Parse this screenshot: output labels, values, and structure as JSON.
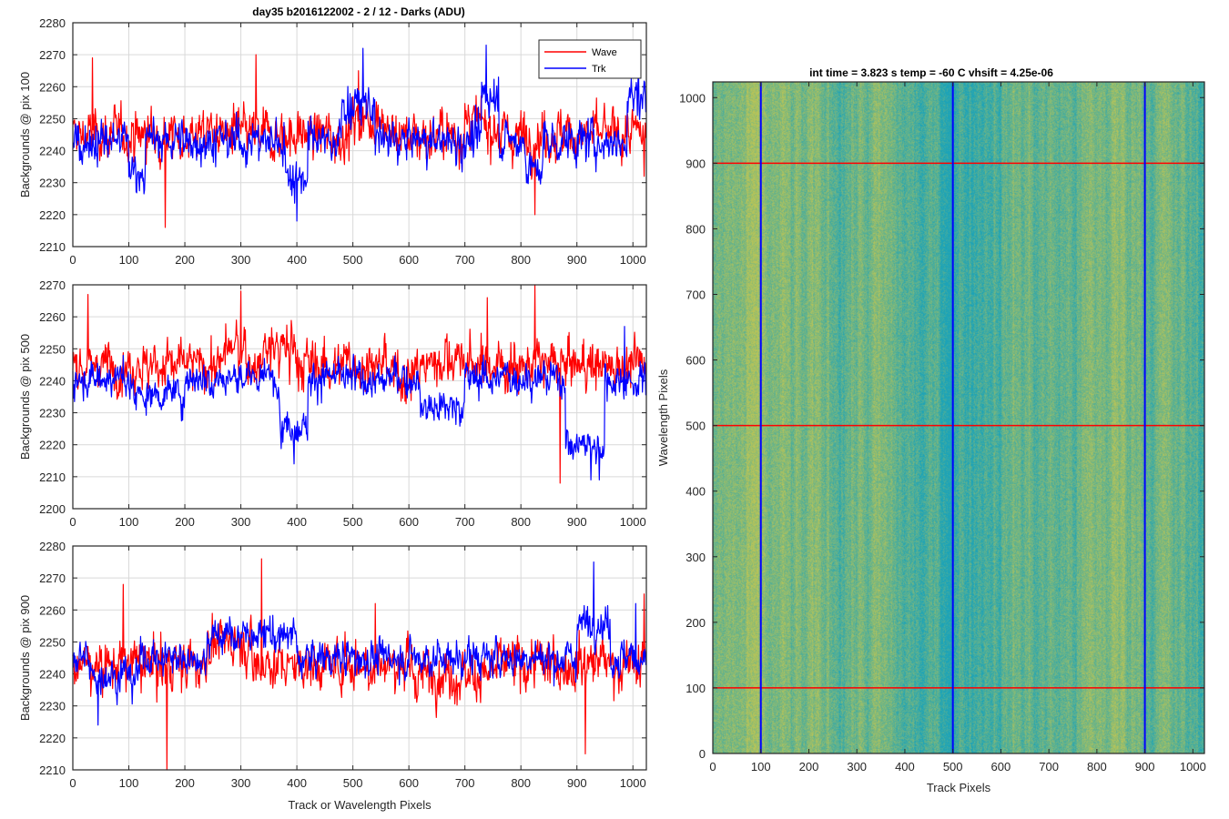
{
  "figure": {
    "left_title": "day35 b2016122002 - 2 / 12 - Darks (ADU)",
    "right_title": "int time = 3.823 s   temp = -60 C   vhsift = 4.25e-06"
  },
  "colors": {
    "wave": "#ff0000",
    "trk": "#0000ff",
    "grid": "#d9d9d9",
    "axis": "#262626",
    "image_low": "#1ca3b8",
    "image_high": "#b8c458"
  },
  "chart_data": [
    {
      "type": "line",
      "title": "day35 b2016122002 - 2 / 12 - Darks (ADU)",
      "xlabel": "",
      "ylabel": "Backgrounds @ pix 100",
      "xlim": [
        0,
        1024
      ],
      "ylim": [
        2210,
        2280
      ],
      "xticks": [
        "0",
        "100",
        "200",
        "300",
        "400",
        "500",
        "600",
        "700",
        "800",
        "900",
        "1000"
      ],
      "yticks": [
        "2210",
        "2220",
        "2230",
        "2240",
        "2250",
        "2260",
        "2270",
        "2280"
      ],
      "grid": true,
      "legend": {
        "placement": "top-right",
        "entries": [
          "Wave",
          "Trk"
        ]
      },
      "series": [
        {
          "name": "Wave",
          "color": "#ff0000",
          "mean": 2245,
          "noise": 7,
          "features": [
            [
              240,
              255,
              2248
            ],
            [
              500,
              560,
              2250
            ],
            [
              540,
              550,
              2252
            ],
            [
              700,
              760,
              2248
            ]
          ],
          "extremes": [
            [
              35,
              2269
            ],
            [
              165,
              2216
            ],
            [
              327,
              2270
            ],
            [
              510,
              2265
            ],
            [
              825,
              2220
            ],
            [
              1020,
              2232
            ]
          ]
        },
        {
          "name": "Trk",
          "color": "#0000ff",
          "mean": 2243,
          "noise": 6,
          "features": [
            [
              100,
              130,
              2234
            ],
            [
              380,
              420,
              2232
            ],
            [
              480,
              540,
              2254
            ],
            [
              730,
              760,
              2258
            ],
            [
              810,
              840,
              2234
            ],
            [
              990,
              1024,
              2257
            ]
          ],
          "extremes": [
            [
              400,
              2218
            ],
            [
              518,
              2272
            ],
            [
              738,
              2273
            ],
            [
              760,
              2263
            ],
            [
              1010,
              2266
            ]
          ]
        }
      ]
    },
    {
      "type": "line",
      "title": "",
      "xlabel": "",
      "ylabel": "Backgrounds @ pix 500",
      "xlim": [
        0,
        1024
      ],
      "ylim": [
        2200,
        2270
      ],
      "xticks": [
        "0",
        "100",
        "200",
        "300",
        "400",
        "500",
        "600",
        "700",
        "800",
        "900",
        "1000"
      ],
      "yticks": [
        "2200",
        "2210",
        "2220",
        "2230",
        "2240",
        "2250",
        "2260",
        "2270"
      ],
      "grid": true,
      "series": [
        {
          "name": "Wave",
          "color": "#ff0000",
          "mean": 2245,
          "noise": 7,
          "features": [
            [
              270,
              310,
              2250
            ],
            [
              340,
              400,
              2250
            ],
            [
              560,
              620,
              2242
            ],
            [
              640,
              700,
              2247
            ]
          ],
          "extremes": [
            [
              27,
              2267
            ],
            [
              168,
              2250
            ],
            [
              300,
              2268
            ],
            [
              740,
              2266
            ],
            [
              825,
              2270
            ],
            [
              870,
              2208
            ]
          ]
        },
        {
          "name": "Trk",
          "color": "#0000ff",
          "mean": 2241,
          "noise": 5,
          "features": [
            [
              100,
              200,
              2236
            ],
            [
              370,
              420,
              2226
            ],
            [
              520,
              560,
              2240
            ],
            [
              620,
              700,
              2232
            ],
            [
              880,
              950,
              2220
            ],
            [
              950,
              1024,
              2240
            ]
          ],
          "extremes": [
            [
              395,
              2214
            ],
            [
              925,
              2209
            ],
            [
              940,
              2209
            ],
            [
              985,
              2257
            ]
          ]
        }
      ]
    },
    {
      "type": "line",
      "title": "",
      "xlabel": "Track or Wavelength Pixels",
      "ylabel": "Backgrounds @ pix 900",
      "xlim": [
        0,
        1024
      ],
      "ylim": [
        2210,
        2280
      ],
      "xticks": [
        "0",
        "100",
        "200",
        "300",
        "400",
        "500",
        "600",
        "700",
        "800",
        "900",
        "1000"
      ],
      "yticks": [
        "2210",
        "2220",
        "2230",
        "2240",
        "2250",
        "2260",
        "2270",
        "2280"
      ],
      "grid": true,
      "series": [
        {
          "name": "Wave",
          "color": "#ff0000",
          "mean": 2243,
          "noise": 7,
          "features": [
            [
              240,
              320,
              2250
            ],
            [
              600,
              760,
              2240
            ],
            [
              900,
              960,
              2244
            ]
          ],
          "extremes": [
            [
              168,
              2210
            ],
            [
              337,
              2276
            ],
            [
              90,
              2268
            ],
            [
              540,
              2262
            ],
            [
              915,
              2215
            ],
            [
              1020,
              2265
            ]
          ]
        },
        {
          "name": "Trk",
          "color": "#0000ff",
          "mean": 2245,
          "noise": 5,
          "features": [
            [
              30,
              120,
              2240
            ],
            [
              240,
              400,
              2252
            ],
            [
              520,
              600,
              2245
            ],
            [
              900,
              960,
              2256
            ]
          ],
          "extremes": [
            [
              45,
              2224
            ],
            [
              930,
              2275
            ],
            [
              1005,
              2262
            ]
          ]
        }
      ]
    },
    {
      "type": "heatmap",
      "title": "int time = 3.823 s   temp = -60 C   vhsift = 4.25e-06",
      "xlabel": "Track Pixels",
      "ylabel": "Wavelength Pixels",
      "xlim": [
        0,
        1024
      ],
      "ylim": [
        0,
        1024
      ],
      "xticks": [
        "0",
        "100",
        "200",
        "300",
        "400",
        "500",
        "600",
        "700",
        "800",
        "900",
        "1000"
      ],
      "yticks": [
        "0",
        "100",
        "200",
        "300",
        "400",
        "500",
        "600",
        "700",
        "800",
        "900",
        "1000"
      ],
      "colormap": "parula",
      "vertical_markers": [
        100,
        500,
        900
      ],
      "horizontal_markers": [
        100,
        500,
        900
      ]
    }
  ]
}
